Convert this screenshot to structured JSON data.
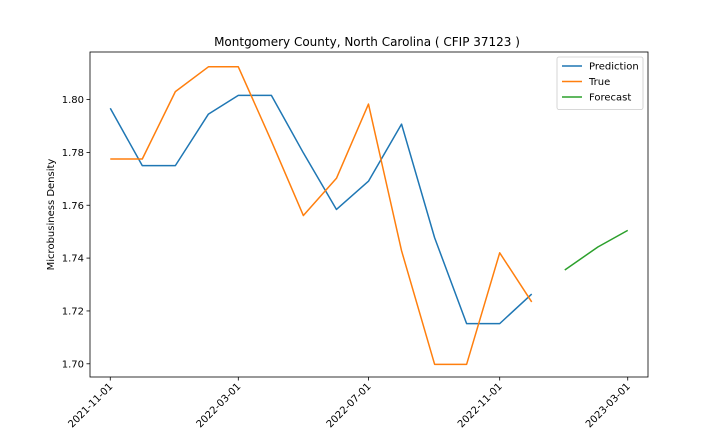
{
  "chart_data": {
    "type": "line",
    "title": "Montgomery County, North Carolina ( CFIP 37123 )",
    "xlabel": "",
    "ylabel": "Microbusiness Density",
    "ylim": [
      1.695,
      1.818
    ],
    "xlim": [
      "2021-10-13",
      "2023-03-20"
    ],
    "yticks": [
      "1.70",
      "1.72",
      "1.74",
      "1.76",
      "1.78",
      "1.80"
    ],
    "xticks": [
      "2021-11-01",
      "2022-03-01",
      "2022-07-01",
      "2022-11-01",
      "2023-03-01"
    ],
    "grid": false,
    "legend_position": "top-right",
    "series": [
      {
        "name": "Prediction",
        "color": "#1f77b4",
        "x": [
          "2021-11-01",
          "2021-12-01",
          "2022-01-01",
          "2022-02-01",
          "2022-03-01",
          "2022-04-01",
          "2022-05-01",
          "2022-06-01",
          "2022-07-01",
          "2022-08-01",
          "2022-09-01",
          "2022-10-01",
          "2022-11-01",
          "2022-12-01"
        ],
        "y": [
          1.7967,
          1.775,
          1.775,
          1.7945,
          1.8016,
          1.8016,
          1.7798,
          1.7584,
          1.7691,
          1.7907,
          1.7477,
          1.7152,
          1.7152,
          1.7264
        ]
      },
      {
        "name": "True",
        "color": "#ff7f0e",
        "x": [
          "2021-11-01",
          "2021-12-01",
          "2022-01-01",
          "2022-02-01",
          "2022-03-01",
          "2022-04-01",
          "2022-05-01",
          "2022-06-01",
          "2022-07-01",
          "2022-08-01",
          "2022-09-01",
          "2022-10-01",
          "2022-11-01",
          "2022-12-01"
        ],
        "y": [
          1.7775,
          1.7775,
          1.803,
          1.8124,
          1.8124,
          1.7843,
          1.7561,
          1.7702,
          1.7983,
          1.7428,
          1.6998,
          1.6998,
          1.742,
          1.7234
        ]
      },
      {
        "name": "Forecast",
        "color": "#2ca02c",
        "x": [
          "2023-01-01",
          "2023-02-01",
          "2023-03-01"
        ],
        "y": [
          1.7355,
          1.7442,
          1.7505
        ]
      }
    ]
  }
}
